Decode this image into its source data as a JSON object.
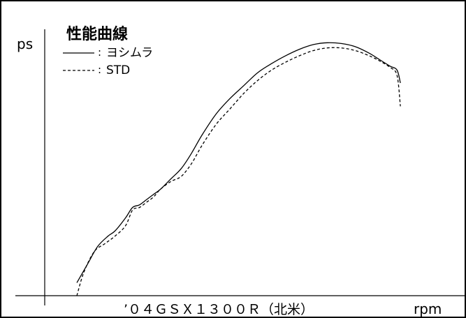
{
  "chart_data": {
    "type": "line",
    "title": "性能曲線",
    "ylabel": "ps",
    "xlabel": "rpm",
    "caption": "’０４ＧＳＸ１３００Ｒ（北米）",
    "xlim": [
      0,
      100
    ],
    "ylim": [
      0,
      100
    ],
    "legend_position": "top-left",
    "grid": false,
    "series": [
      {
        "name": "ヨシムラ",
        "style": "solid",
        "color": "#000000",
        "x": [
          0,
          3,
          6,
          9,
          11,
          14,
          16,
          18,
          20,
          22,
          24,
          27,
          30,
          33,
          36,
          40,
          44,
          48,
          52,
          56,
          60,
          64,
          68,
          72,
          76,
          80,
          84,
          87,
          90,
          92,
          93
        ],
        "y": [
          5,
          12,
          19,
          23,
          25,
          30,
          34,
          35,
          37,
          39,
          41,
          45,
          49,
          55,
          62,
          70,
          76,
          81,
          86,
          89.5,
          92.5,
          95,
          96.8,
          97.5,
          97.2,
          96,
          93.5,
          91,
          88.5,
          87,
          82
        ]
      },
      {
        "name": "STD",
        "style": "dashed",
        "color": "#000000",
        "x": [
          0,
          2,
          5,
          8,
          11,
          14,
          16,
          18,
          20,
          22,
          24,
          27,
          30,
          33,
          36,
          40,
          44,
          48,
          52,
          56,
          60,
          64,
          68,
          72,
          76,
          80,
          84,
          87,
          90,
          92,
          93
        ],
        "y": [
          0,
          9,
          17,
          20,
          23,
          27,
          33,
          34,
          36,
          38,
          41,
          44,
          46,
          51,
          58,
          66,
          72,
          78,
          83,
          87,
          90,
          92.5,
          94.5,
          95.5,
          95.5,
          94.5,
          92.5,
          90.5,
          88,
          85,
          73
        ]
      }
    ]
  }
}
